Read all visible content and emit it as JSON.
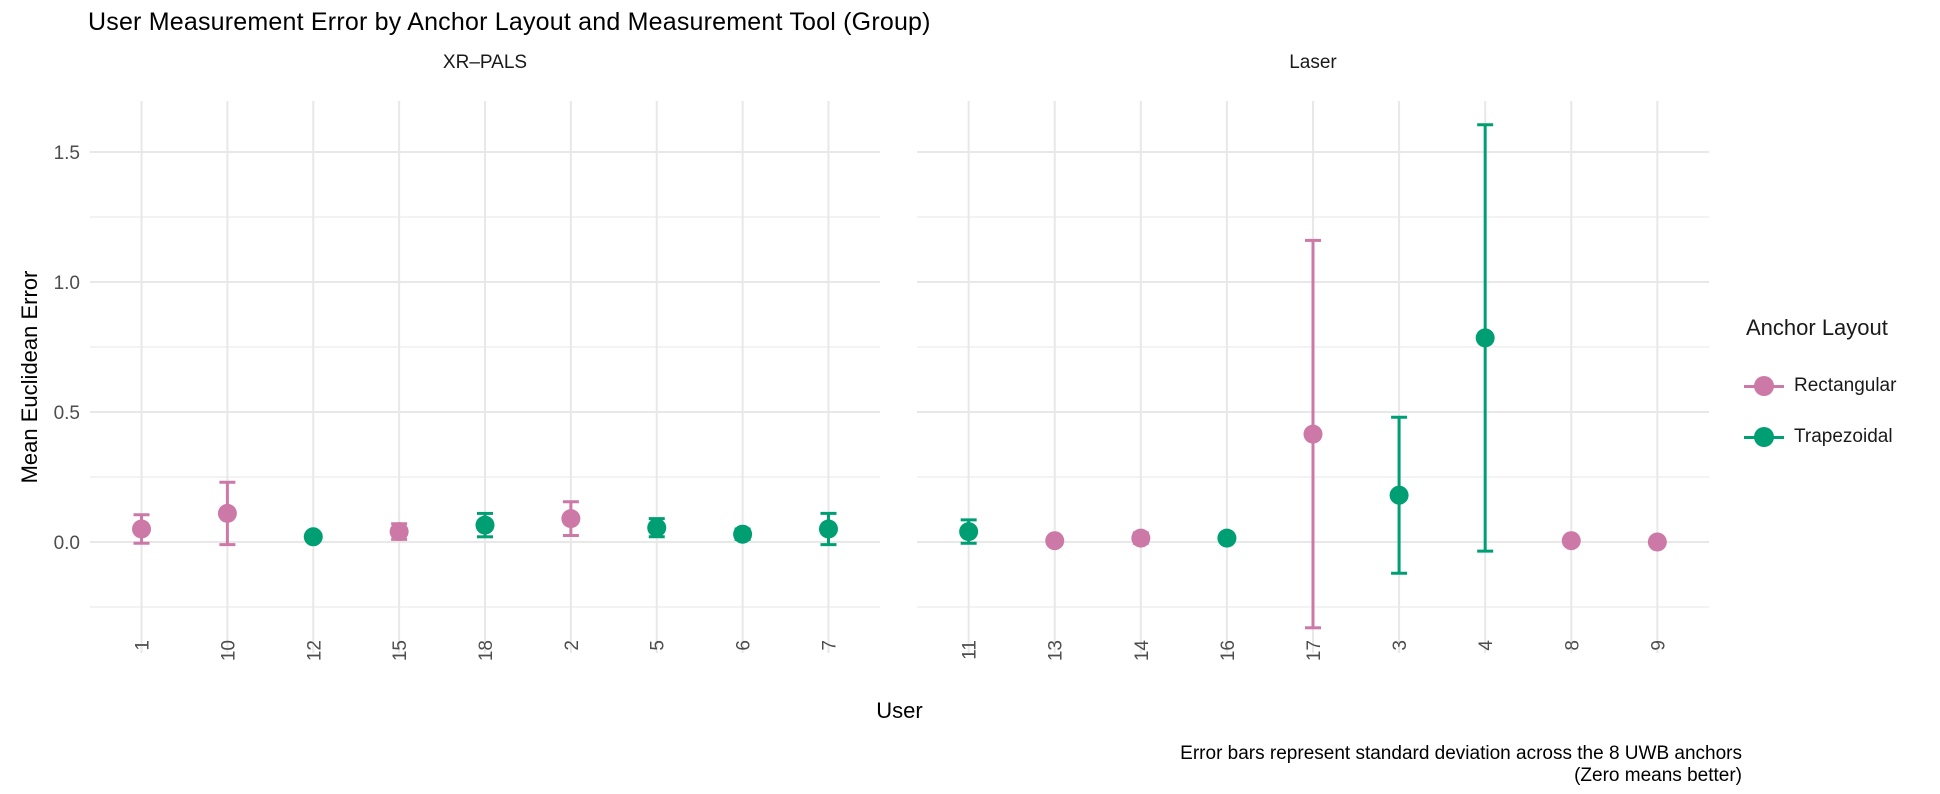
{
  "title": "User Measurement Error by Anchor Layout and Measurement Tool (Group)",
  "axes": {
    "x_title": "User",
    "y_title": "Mean Euclidean Error"
  },
  "legend": {
    "title": "Anchor Layout",
    "items": [
      {
        "label": "Rectangular",
        "color": "#CC79A7"
      },
      {
        "label": "Trapezoidal",
        "color": "#009E73"
      }
    ]
  },
  "caption_line1": "Error bars represent standard deviation across the 8 UWB anchors",
  "caption_line2": "(Zero means better)",
  "colors": {
    "grid_major": "#E8E8E8",
    "grid_minor": "#EFEFEF",
    "axis_text": "#4D4D4D",
    "rectangular": "#CC79A7",
    "trapezoidal": "#009E73"
  },
  "chart_data": {
    "type": "scatter",
    "title": "User Measurement Error by Anchor Layout and Measurement Tool (Group)",
    "xlabel": "User",
    "ylabel": "Mean Euclidean Error",
    "ylim": [
      -0.43,
      1.7
    ],
    "y_major_ticks": [
      0,
      0.5,
      1.0,
      1.5
    ],
    "y_tick_labels": [
      "0.0",
      "0.5",
      "1.0",
      "1.5"
    ],
    "y_minor_ticks": [
      -0.25,
      0.25,
      0.75,
      1.25
    ],
    "grid": true,
    "legend_title": "Anchor Layout",
    "legend_position": "right",
    "groups": [
      {
        "name": "Rectangular",
        "color": "#CC79A7"
      },
      {
        "name": "Trapezoidal",
        "color": "#009E73"
      }
    ],
    "error_bar_note": "Error bars represent standard deviation across the 8 UWB anchors (Zero means better)",
    "facets": [
      {
        "label": "XR–PALS",
        "points": [
          {
            "user": "1",
            "layout": "Rectangular",
            "mean": 0.05,
            "sd": 0.055
          },
          {
            "user": "10",
            "layout": "Rectangular",
            "mean": 0.11,
            "sd": 0.12
          },
          {
            "user": "12",
            "layout": "Trapezoidal",
            "mean": 0.02,
            "sd": 0.01
          },
          {
            "user": "15",
            "layout": "Rectangular",
            "mean": 0.04,
            "sd": 0.03
          },
          {
            "user": "18",
            "layout": "Trapezoidal",
            "mean": 0.065,
            "sd": 0.045
          },
          {
            "user": "2",
            "layout": "Rectangular",
            "mean": 0.09,
            "sd": 0.065
          },
          {
            "user": "5",
            "layout": "Trapezoidal",
            "mean": 0.055,
            "sd": 0.035
          },
          {
            "user": "6",
            "layout": "Trapezoidal",
            "mean": 0.03,
            "sd": 0.02
          },
          {
            "user": "7",
            "layout": "Trapezoidal",
            "mean": 0.05,
            "sd": 0.06
          }
        ]
      },
      {
        "label": "Laser",
        "points": [
          {
            "user": "11",
            "layout": "Trapezoidal",
            "mean": 0.04,
            "sd": 0.045
          },
          {
            "user": "13",
            "layout": "Rectangular",
            "mean": 0.005,
            "sd": 0.005
          },
          {
            "user": "14",
            "layout": "Rectangular",
            "mean": 0.015,
            "sd": 0.02
          },
          {
            "user": "16",
            "layout": "Trapezoidal",
            "mean": 0.015,
            "sd": 0.008
          },
          {
            "user": "17",
            "layout": "Rectangular",
            "mean": 0.415,
            "sd": 0.745
          },
          {
            "user": "3",
            "layout": "Trapezoidal",
            "mean": 0.18,
            "sd": 0.3
          },
          {
            "user": "4",
            "layout": "Trapezoidal",
            "mean": 0.785,
            "sd": 0.82
          },
          {
            "user": "8",
            "layout": "Rectangular",
            "mean": 0.005,
            "sd": 0.004
          },
          {
            "user": "9",
            "layout": "Rectangular",
            "mean": 0.0,
            "sd": 0.004
          }
        ]
      }
    ]
  }
}
